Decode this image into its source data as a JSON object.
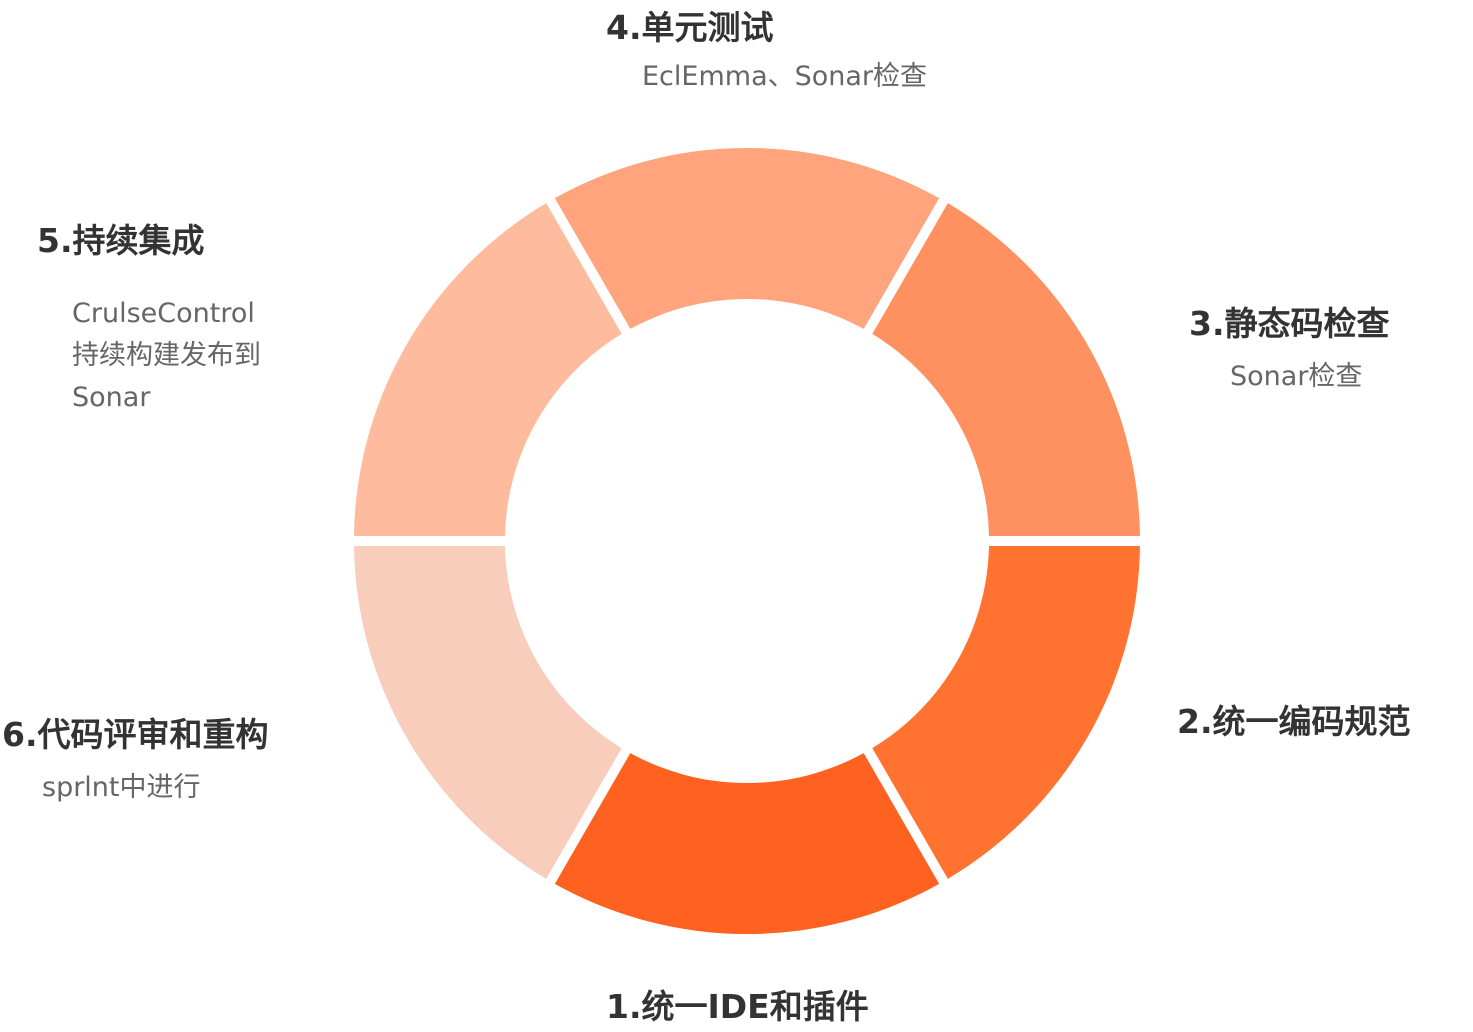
{
  "ring": {
    "colors": {
      "step1": "#ff6120",
      "step2": "#ff7230",
      "step3": "#ff9060",
      "step4": "#ffa47d",
      "step5": "#ffbb9d",
      "step6": "#f8cdbb"
    }
  },
  "steps": [
    {
      "id": "step1",
      "title": "1.统一IDE和插件",
      "desc": []
    },
    {
      "id": "step2",
      "title": "2.统一编码规范",
      "desc": []
    },
    {
      "id": "step3",
      "title": "3.静态码检查",
      "desc": [
        "Sonar检查"
      ]
    },
    {
      "id": "step4",
      "title": "4.单元测试",
      "desc": [
        "EclEmma、Sonar检查"
      ]
    },
    {
      "id": "step5",
      "title": "5.持续集成",
      "desc": [
        "CrulseControl",
        "持续构建发布到",
        "Sonar"
      ]
    },
    {
      "id": "step6",
      "title": "6.代码评审和重构",
      "desc": [
        "sprlnt中进行"
      ]
    }
  ]
}
